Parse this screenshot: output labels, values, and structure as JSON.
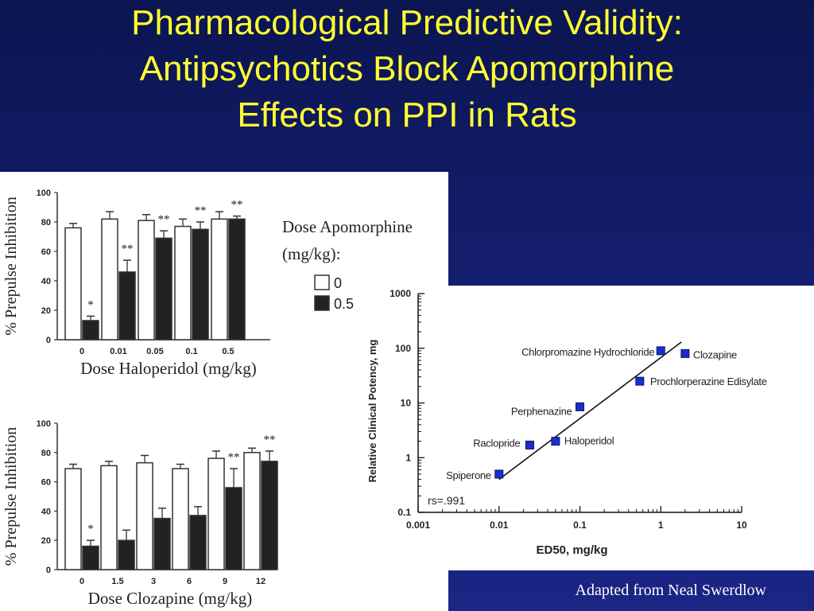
{
  "title": {
    "line1": "Pharmacological Predictive Validity:",
    "line2": "Antipsychotics Block Apomorphine",
    "line3": "Effects on PPI in Rats"
  },
  "credit": "Adapted from  Neal Swerdlow",
  "colors": {
    "background": "#141e6e",
    "title": "#ffff33",
    "bar_white": "#ffffff",
    "bar_black": "#222222",
    "point": "#1a2ecc"
  },
  "chart_data": [
    {
      "type": "bar",
      "ylabel": "% Prepulse Inhibition",
      "xlabel": "Dose Haloperidol (mg/kg)",
      "categories": [
        "0",
        "0.01",
        "0.05",
        "0.1",
        "0.5"
      ],
      "ylim": [
        0,
        100
      ],
      "yticks": [
        "0",
        "20",
        "40",
        "60",
        "80",
        "100"
      ],
      "series": [
        {
          "name": "0",
          "values": [
            76,
            82,
            81,
            77,
            82
          ],
          "errors": [
            3,
            5,
            4,
            5,
            5
          ]
        },
        {
          "name": "0.5",
          "values": [
            13,
            46,
            69,
            75,
            82
          ],
          "errors": [
            3,
            8,
            5,
            5,
            2
          ]
        }
      ],
      "annotations": [
        "*",
        "**",
        "**",
        "**",
        "**"
      ],
      "legend": {
        "title_line1": "Dose Apomorphine",
        "title_line2": "(mg/kg):",
        "placement": "right"
      }
    },
    {
      "type": "bar",
      "ylabel": "% Prepulse Inhibition",
      "xlabel": "Dose Clozapine (mg/kg)",
      "categories": [
        "0",
        "1.5",
        "3",
        "6",
        "9",
        "12"
      ],
      "ylim": [
        0,
        100
      ],
      "yticks": [
        "0",
        "20",
        "40",
        "60",
        "80",
        "100"
      ],
      "series": [
        {
          "name": "0",
          "values": [
            69,
            71,
            73,
            69,
            76,
            80
          ],
          "errors": [
            3,
            3,
            5,
            3,
            5,
            3
          ]
        },
        {
          "name": "0.5",
          "values": [
            16,
            20,
            35,
            37,
            56,
            74
          ],
          "errors": [
            4,
            7,
            7,
            6,
            13,
            7
          ]
        }
      ],
      "annotations": [
        "*",
        "",
        "",
        "",
        "**",
        "**"
      ]
    },
    {
      "type": "scatter",
      "xlabel": "ED50, mg/kg",
      "ylabel": "Relative Clinical Potency, mg",
      "xscale": "log",
      "yscale": "log",
      "xlim": [
        0.001,
        10
      ],
      "ylim": [
        0.1,
        1000
      ],
      "xticks": [
        "0.001",
        "0.01",
        "0.1",
        "1",
        "10"
      ],
      "yticks": [
        "0.1",
        "1",
        "10",
        "100",
        "1000"
      ],
      "points": [
        {
          "label": "Spiperone",
          "x": 0.01,
          "y": 0.5
        },
        {
          "label": "Raclopride",
          "x": 0.024,
          "y": 1.7
        },
        {
          "label": "Haloperidol",
          "x": 0.05,
          "y": 2
        },
        {
          "label": "Perphenazine",
          "x": 0.1,
          "y": 8.5
        },
        {
          "label": "Prochlorperazine Edisylate",
          "x": 0.55,
          "y": 25
        },
        {
          "label": "Chlorpromazine Hydrochloride",
          "x": 1,
          "y": 90
        },
        {
          "label": "Clozapine",
          "x": 2,
          "y": 80
        }
      ],
      "fit_line": {
        "x": [
          0.01,
          1.8
        ],
        "y": [
          0.4,
          130
        ]
      },
      "annotation": "rs=.991"
    }
  ]
}
